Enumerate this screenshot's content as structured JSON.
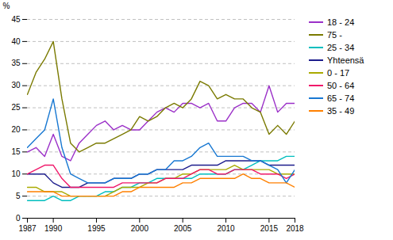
{
  "chart_data": {
    "type": "line",
    "ylabel": "%",
    "x": [
      1987,
      1988,
      1989,
      1990,
      1991,
      1992,
      1993,
      1994,
      1995,
      1996,
      1997,
      1998,
      1999,
      2000,
      2001,
      2002,
      2003,
      2004,
      2005,
      2006,
      2007,
      2008,
      2009,
      2010,
      2011,
      2012,
      2013,
      2014,
      2015,
      2016,
      2017,
      2018
    ],
    "series": [
      {
        "name": "18 - 24",
        "color": "#9B30C8",
        "values": [
          15,
          16,
          14,
          19,
          14,
          13,
          17,
          19,
          21,
          22,
          20,
          21,
          20,
          20,
          22,
          24,
          25,
          24,
          26,
          26,
          25,
          26,
          22,
          22,
          25,
          26,
          26,
          24,
          30,
          24,
          26,
          26
        ]
      },
      {
        "name": "75 -",
        "color": "#7A7A00",
        "values": [
          28,
          33,
          36,
          40,
          27,
          17,
          15,
          16,
          17,
          17,
          18,
          19,
          20,
          23,
          22,
          23,
          25,
          26,
          25,
          27,
          31,
          30,
          27,
          28,
          27,
          27,
          25,
          24,
          19,
          21,
          19,
          22
        ]
      },
      {
        "name": "25 - 34",
        "color": "#00BEBE",
        "values": [
          4,
          4,
          4,
          5,
          4,
          4,
          5,
          5,
          5,
          6,
          6,
          7,
          7,
          8,
          8,
          9,
          9,
          9,
          9,
          9,
          10,
          10,
          10,
          10,
          11,
          11,
          12,
          13,
          13,
          13,
          14,
          14
        ]
      },
      {
        "name": "Yhteensä",
        "color": "#1C1C8C",
        "values": [
          10,
          10,
          10,
          8,
          7,
          7,
          7,
          8,
          8,
          8,
          9,
          9,
          9,
          10,
          10,
          11,
          11,
          11,
          11,
          12,
          12,
          12,
          12,
          13,
          13,
          13,
          13,
          13,
          12,
          12,
          12,
          12
        ]
      },
      {
        "name": "0 - 17",
        "color": "#AAAA00",
        "values": [
          7,
          7,
          6,
          6,
          6,
          5,
          5,
          5,
          5,
          5,
          6,
          7,
          7,
          7,
          8,
          8,
          9,
          9,
          10,
          10,
          11,
          11,
          11,
          11,
          12,
          11,
          11,
          11,
          11,
          10,
          10,
          10
        ]
      },
      {
        "name": "50 - 64",
        "color": "#F0186A",
        "values": [
          10,
          11,
          12,
          12,
          9,
          7,
          7,
          7,
          7,
          7,
          7,
          8,
          8,
          8,
          8,
          8,
          9,
          9,
          9,
          10,
          11,
          11,
          10,
          10,
          11,
          11,
          11,
          10,
          10,
          10,
          9,
          10
        ]
      },
      {
        "name": "65 - 74",
        "color": "#1878D2",
        "values": [
          16,
          18,
          20,
          27,
          16,
          10,
          9,
          8,
          8,
          8,
          9,
          9,
          9,
          10,
          10,
          11,
          11,
          13,
          13,
          14,
          16,
          17,
          14,
          14,
          14,
          14,
          13,
          13,
          12,
          11,
          8,
          11
        ]
      },
      {
        "name": "35 - 49",
        "color": "#FF8000",
        "values": [
          6,
          6,
          6,
          6,
          5,
          5,
          5,
          5,
          5,
          5,
          5,
          6,
          6,
          7,
          7,
          7,
          7,
          7,
          8,
          8,
          9,
          9,
          9,
          9,
          9,
          10,
          9,
          9,
          8,
          8,
          8,
          7
        ]
      }
    ],
    "xlim": [
      1987,
      2018
    ],
    "xticks": [
      1987,
      1990,
      1995,
      2000,
      2005,
      2010,
      2015,
      2018
    ],
    "ylim": [
      0,
      45
    ],
    "yticks": [
      0,
      5,
      10,
      15,
      20,
      25,
      30,
      35,
      40,
      45
    ],
    "grid": true,
    "legend": "right"
  }
}
